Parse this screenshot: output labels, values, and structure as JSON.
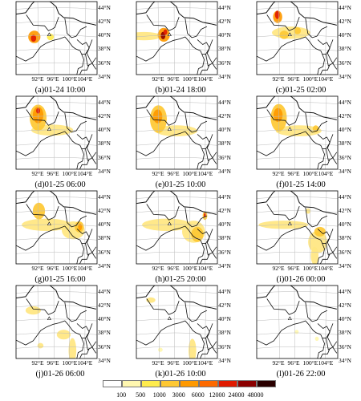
{
  "figure": {
    "panels": [
      {
        "caption": "(a)01-24 10:00",
        "plumes": [
          {
            "color": "#fe9900",
            "shape": "blob",
            "cx": 90.8,
            "cy": 39.8,
            "rx": 1.6,
            "ry": 0.9
          },
          {
            "color": "#e01a00",
            "shape": "blob",
            "cx": 90.6,
            "cy": 39.6,
            "rx": 0.7,
            "ry": 0.5
          },
          {
            "color": "#ffec4d",
            "shape": "blob",
            "cx": 95.0,
            "cy": 39.8,
            "rx": 0.9,
            "ry": 0.5
          }
        ]
      },
      {
        "caption": "(b)01-24 18:00",
        "plumes": [
          {
            "color": "#ffe680",
            "shape": "blob",
            "cx": 88.0,
            "cy": 39.9,
            "rx": 4.5,
            "ry": 0.6
          },
          {
            "color": "#fe9900",
            "shape": "blob",
            "cx": 93.2,
            "cy": 40.1,
            "rx": 1.6,
            "ry": 1.0
          },
          {
            "color": "#8b0000",
            "shape": "blob",
            "cx": 93.0,
            "cy": 40.0,
            "rx": 0.6,
            "ry": 0.55
          },
          {
            "color": "#e01a00",
            "shape": "blob",
            "cx": 93.6,
            "cy": 40.5,
            "rx": 0.5,
            "ry": 0.4
          }
        ]
      },
      {
        "caption": "(c)01-25 02:00",
        "plumes": [
          {
            "color": "#ffe680",
            "shape": "blob",
            "cx": 95.0,
            "cy": 40.4,
            "rx": 5.0,
            "ry": 0.9
          },
          {
            "color": "#fe9900",
            "shape": "blob",
            "cx": 91.5,
            "cy": 42.7,
            "rx": 1.2,
            "ry": 0.9
          },
          {
            "color": "#e01a00",
            "shape": "blob",
            "cx": 91.4,
            "cy": 43.0,
            "rx": 0.6,
            "ry": 0.6
          },
          {
            "color": "#fec833",
            "shape": "blob",
            "cx": 93.2,
            "cy": 40.1,
            "rx": 1.2,
            "ry": 0.6
          },
          {
            "color": "#fec833",
            "shape": "blob",
            "cx": 96.7,
            "cy": 40.7,
            "rx": 0.9,
            "ry": 0.5
          }
        ]
      },
      {
        "caption": "(d)01-25 06:00",
        "plumes": [
          {
            "color": "#ffe680",
            "shape": "blob",
            "cx": 95.5,
            "cy": 40.0,
            "rx": 5.5,
            "ry": 0.8
          },
          {
            "color": "#fec833",
            "shape": "blob",
            "cx": 91.8,
            "cy": 41.8,
            "rx": 2.2,
            "ry": 1.9
          },
          {
            "color": "#fe9900",
            "shape": "blob",
            "cx": 91.8,
            "cy": 42.2,
            "rx": 1.4,
            "ry": 1.2
          },
          {
            "color": "#e01a00",
            "shape": "blob",
            "cx": 91.8,
            "cy": 42.8,
            "rx": 0.5,
            "ry": 0.4
          }
        ]
      },
      {
        "caption": "(e)01-25 10:00",
        "plumes": [
          {
            "color": "#ffe680",
            "shape": "blob",
            "cx": 96.5,
            "cy": 39.9,
            "rx": 5.5,
            "ry": 0.8
          },
          {
            "color": "#fec833",
            "shape": "blob",
            "cx": 91.8,
            "cy": 41.6,
            "rx": 2.2,
            "ry": 2.0
          },
          {
            "color": "#fe9900",
            "shape": "blob",
            "cx": 91.6,
            "cy": 42.0,
            "rx": 1.2,
            "ry": 1.0
          }
        ]
      },
      {
        "caption": "(f)01-25 14:00",
        "plumes": [
          {
            "color": "#ffe680",
            "shape": "blob",
            "cx": 97.0,
            "cy": 39.9,
            "rx": 6.0,
            "ry": 0.8
          },
          {
            "color": "#fec833",
            "shape": "blob",
            "cx": 91.8,
            "cy": 41.8,
            "rx": 2.1,
            "ry": 2.0
          },
          {
            "color": "#fe9900",
            "shape": "blob",
            "cx": 91.6,
            "cy": 42.2,
            "rx": 1.2,
            "ry": 1.0
          },
          {
            "color": "#fec833",
            "shape": "blob",
            "cx": 101.5,
            "cy": 40.2,
            "rx": 0.8,
            "ry": 0.5
          }
        ]
      },
      {
        "caption": "(g)01-25 16:00",
        "plumes": [
          {
            "color": "#ffe680",
            "shape": "blob",
            "cx": 94.0,
            "cy": 40.0,
            "rx": 6.5,
            "ry": 0.9
          },
          {
            "color": "#ffe680",
            "shape": "blob",
            "cx": 101.0,
            "cy": 39.2,
            "rx": 3.0,
            "ry": 1.3
          },
          {
            "color": "#fec833",
            "shape": "blob",
            "cx": 92.0,
            "cy": 42.0,
            "rx": 1.6,
            "ry": 1.2
          },
          {
            "color": "#fec833",
            "shape": "blob",
            "cx": 102.6,
            "cy": 39.7,
            "rx": 1.2,
            "ry": 0.8
          },
          {
            "color": "#fe9900",
            "shape": "blob",
            "cx": 102.8,
            "cy": 39.7,
            "rx": 0.5,
            "ry": 0.5
          }
        ]
      },
      {
        "caption": "(h)01-25 20:00",
        "plumes": [
          {
            "color": "#ffe680",
            "shape": "blob",
            "cx": 94.0,
            "cy": 40.0,
            "rx": 6.5,
            "ry": 0.9
          },
          {
            "color": "#ffe680",
            "shape": "blob",
            "cx": 101.0,
            "cy": 39.0,
            "rx": 3.0,
            "ry": 1.6
          },
          {
            "color": "#fec833",
            "shape": "blob",
            "cx": 102.0,
            "cy": 38.6,
            "rx": 1.6,
            "ry": 1.1
          },
          {
            "color": "#fec833",
            "shape": "blob",
            "cx": 104.0,
            "cy": 41.3,
            "rx": 0.6,
            "ry": 0.6
          },
          {
            "color": "#e01a00",
            "shape": "blob",
            "cx": 104.0,
            "cy": 41.4,
            "rx": 0.3,
            "ry": 0.3
          }
        ]
      },
      {
        "caption": "(i)01-26 00:00",
        "plumes": [
          {
            "color": "#ffe680",
            "shape": "blob",
            "cx": 93.0,
            "cy": 40.0,
            "rx": 6.5,
            "ry": 0.6
          },
          {
            "color": "#ffe680",
            "shape": "blob",
            "cx": 102.0,
            "cy": 37.5,
            "rx": 2.5,
            "ry": 1.6
          },
          {
            "color": "#ffe680",
            "shape": "blob",
            "cx": 101.2,
            "cy": 35.5,
            "rx": 1.0,
            "ry": 1.3
          },
          {
            "color": "#ffe680",
            "shape": "blob",
            "cx": 99.5,
            "cy": 42.0,
            "rx": 0.6,
            "ry": 0.4
          },
          {
            "color": "#fec833",
            "shape": "blob",
            "cx": 102.6,
            "cy": 39.0,
            "rx": 1.5,
            "ry": 0.7
          }
        ]
      },
      {
        "caption": "(j)01-26 06:00",
        "plumes": [
          {
            "color": "#ffe680",
            "shape": "blob",
            "cx": 90.5,
            "cy": 41.3,
            "rx": 2.0,
            "ry": 0.6
          },
          {
            "color": "#ffe680",
            "shape": "blob",
            "cx": 98.5,
            "cy": 37.8,
            "rx": 1.8,
            "ry": 0.7
          },
          {
            "color": "#ffe680",
            "shape": "blob",
            "cx": 100.8,
            "cy": 35.5,
            "rx": 1.0,
            "ry": 1.8
          },
          {
            "color": "#ffe680",
            "shape": "blob",
            "cx": 99.8,
            "cy": 33.6,
            "rx": 0.7,
            "ry": 0.6
          },
          {
            "color": "#ffe680",
            "shape": "blob",
            "cx": 92.4,
            "cy": 36.2,
            "rx": 0.8,
            "ry": 0.4
          }
        ]
      },
      {
        "caption": "(k)01-26 10:00",
        "plumes": [
          {
            "color": "#ffe680",
            "shape": "blob",
            "cx": 89.8,
            "cy": 42.8,
            "rx": 1.2,
            "ry": 0.4
          },
          {
            "color": "#ffe680",
            "shape": "blob",
            "cx": 100.7,
            "cy": 35.5,
            "rx": 1.0,
            "ry": 1.7
          },
          {
            "color": "#ffe680",
            "shape": "blob",
            "cx": 101.6,
            "cy": 33.8,
            "rx": 0.8,
            "ry": 0.5
          },
          {
            "color": "#fff7b0",
            "shape": "blob",
            "cx": 92.3,
            "cy": 35.6,
            "rx": 0.6,
            "ry": 0.3
          }
        ]
      },
      {
        "caption": "(l)01-26 22:00",
        "plumes": [
          {
            "color": "#fff7b0",
            "shape": "blob",
            "cx": 96.5,
            "cy": 38.2,
            "rx": 0.5,
            "ry": 0.3
          },
          {
            "color": "#fff7b0",
            "shape": "blob",
            "cx": 101.8,
            "cy": 37.2,
            "rx": 0.5,
            "ry": 0.3
          }
        ]
      }
    ],
    "lat_labels": [
      "44°N",
      "42°N",
      "40°N",
      "38°N",
      "36°N",
      "34°N"
    ],
    "lat_values": [
      44,
      42,
      40,
      38,
      36,
      34
    ],
    "lon_labels": [
      "92°E",
      "96°E",
      "100°E",
      "104°E"
    ],
    "lon_values": [
      92,
      96,
      100,
      104
    ]
  },
  "legend": {
    "labels": [
      "100",
      "500",
      "1000",
      "3000",
      "6000",
      "12000",
      "24000",
      "48000"
    ],
    "colors": [
      "#ffffff",
      "#fff7b0",
      "#ffec4d",
      "#fec833",
      "#fe9900",
      "#fe6a00",
      "#e01a00",
      "#8b0000",
      "#2a0000"
    ]
  },
  "colors": {
    "boundary": "#111111",
    "grid": "#bbbbbb"
  }
}
